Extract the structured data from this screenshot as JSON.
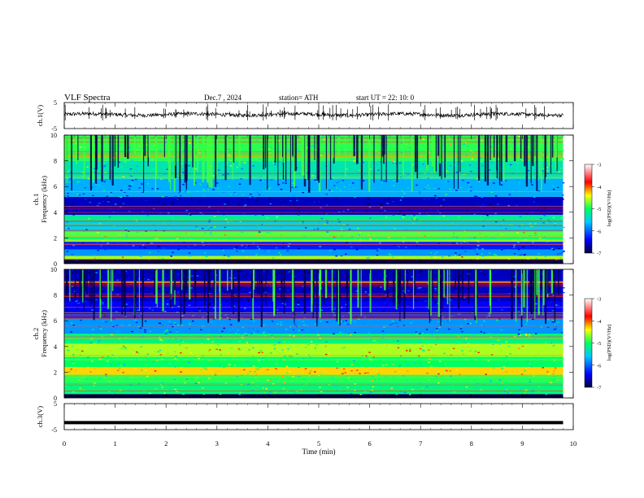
{
  "header": {
    "title": "VLF  Spectra",
    "date": "Dec.7  , 2024",
    "station": "station= ATH",
    "start_ut": "start  UT  =    22: 10: 0"
  },
  "chart_data": [
    {
      "id": "ch1-waveform",
      "type": "line",
      "ylabel": "ch.1(V)",
      "yticks": [
        "5",
        "-5"
      ],
      "ylim": [
        -5,
        5
      ],
      "xlim": [
        0,
        10
      ],
      "description_level": 0.4
    },
    {
      "id": "ch1-spectrogram",
      "type": "heatmap",
      "ylabel": "ch.1\nFrequency (kHz)",
      "ylabel_line1": "ch.1",
      "ylabel_line2": "Frequency  (kHz)",
      "yticks": [
        "0",
        "2",
        "4",
        "6",
        "8",
        "10"
      ],
      "ylim": [
        0,
        10
      ],
      "xlim": [
        0,
        10
      ],
      "data_end_min": 9.8,
      "colorbar": {
        "label": "log(PSD)(V²/Hz)",
        "ticks": [
          "-3",
          "-4",
          "-5",
          "-6",
          "-7"
        ],
        "range": [
          -7,
          -3
        ]
      },
      "bands_khz": [
        {
          "f0": 0.0,
          "f1": 0.35,
          "level": -7.0
        },
        {
          "f0": 0.35,
          "f1": 0.6,
          "level": -4.6
        },
        {
          "f0": 0.6,
          "f1": 1.1,
          "level": -5.8
        },
        {
          "f0": 1.1,
          "f1": 1.7,
          "level": -6.3
        },
        {
          "f0": 1.7,
          "f1": 2.1,
          "level": -5.0
        },
        {
          "f0": 2.1,
          "f1": 2.5,
          "level": -4.8
        },
        {
          "f0": 2.5,
          "f1": 3.3,
          "level": -5.5
        },
        {
          "f0": 3.3,
          "f1": 3.8,
          "level": -5.2
        },
        {
          "f0": 3.8,
          "f1": 5.2,
          "level": -6.6
        },
        {
          "f0": 5.2,
          "f1": 6.6,
          "level": -5.7
        },
        {
          "f0": 6.6,
          "f1": 8.0,
          "level": -5.3
        },
        {
          "f0": 8.0,
          "f1": 10.0,
          "level": -4.9
        }
      ]
    },
    {
      "id": "ch2-spectrogram",
      "type": "heatmap",
      "ylabel_line1": "ch.2",
      "ylabel_line2": "Frequency  (kHz)",
      "yticks": [
        "0",
        "2",
        "4",
        "6",
        "8",
        "10"
      ],
      "ylim": [
        0,
        10
      ],
      "xlim": [
        0,
        10
      ],
      "data_end_min": 9.8,
      "colorbar": {
        "label": "log(PSD)(V²/Hz)",
        "ticks": [
          "-3",
          "-4",
          "-5",
          "-6",
          "-7"
        ],
        "range": [
          -7,
          -3
        ]
      },
      "bands_khz": [
        {
          "f0": 0.0,
          "f1": 0.3,
          "level": -7.0
        },
        {
          "f0": 0.3,
          "f1": 1.2,
          "level": -5.1
        },
        {
          "f0": 1.2,
          "f1": 1.8,
          "level": -4.9
        },
        {
          "f0": 1.8,
          "f1": 2.4,
          "level": -4.3
        },
        {
          "f0": 2.4,
          "f1": 3.2,
          "level": -5.0
        },
        {
          "f0": 3.2,
          "f1": 4.2,
          "level": -4.6
        },
        {
          "f0": 4.2,
          "f1": 5.0,
          "level": -5.1
        },
        {
          "f0": 5.0,
          "f1": 6.2,
          "level": -5.8
        },
        {
          "f0": 6.2,
          "f1": 7.5,
          "level": -6.4
        },
        {
          "f0": 7.5,
          "f1": 10.0,
          "level": -6.6
        }
      ]
    },
    {
      "id": "ch3-waveform",
      "type": "line",
      "ylabel": "ch.3(V)",
      "yticks": [
        "5",
        "-5"
      ],
      "ylim": [
        -5,
        5
      ],
      "xlim": [
        0,
        10
      ],
      "description_level": -2.3
    }
  ],
  "xaxis": {
    "label": "Time  (min)",
    "ticks": [
      "0",
      "1",
      "2",
      "3",
      "4",
      "5",
      "6",
      "7",
      "8",
      "9",
      "10"
    ]
  },
  "colors": {
    "scale": [
      "#000040",
      "#0000ff",
      "#00c8ff",
      "#00ff60",
      "#ffff00",
      "#ff0000",
      "#ffffff"
    ]
  }
}
